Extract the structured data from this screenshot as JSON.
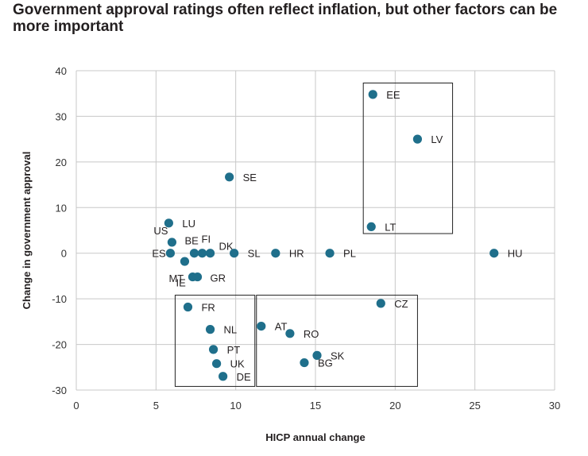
{
  "chart_data": {
    "type": "scatter",
    "title": "Government approval ratings often reflect inflation, but other factors can be more important",
    "xlabel": "HICP annual change",
    "ylabel": "Change in government approval",
    "xlim": [
      0,
      30
    ],
    "ylim": [
      -30,
      40
    ],
    "xticks": [
      0,
      5,
      10,
      15,
      20,
      25,
      30
    ],
    "yticks": [
      -30,
      -20,
      -10,
      0,
      10,
      20,
      30,
      40
    ],
    "grid": true,
    "marker_color": "#1f6f8b",
    "points": [
      {
        "label": "EE",
        "x": 18.6,
        "y": 34.8
      },
      {
        "label": "LV",
        "x": 21.4,
        "y": 25.0
      },
      {
        "label": "SE",
        "x": 9.6,
        "y": 16.7
      },
      {
        "label": "LU",
        "x": 5.8,
        "y": 6.6
      },
      {
        "label": "LT",
        "x": 18.5,
        "y": 5.8
      },
      {
        "label": "US",
        "x": 6.0,
        "y": 2.4
      },
      {
        "label": "BE",
        "x": 7.4,
        "y": 0.0
      },
      {
        "label": "FI",
        "x": 7.9,
        "y": 0.0
      },
      {
        "label": "DK",
        "x": 8.4,
        "y": 0.0
      },
      {
        "label": "ES",
        "x": 5.9,
        "y": 0.0
      },
      {
        "label": "SL",
        "x": 9.9,
        "y": 0.0
      },
      {
        "label": "HR",
        "x": 12.5,
        "y": 0.0
      },
      {
        "label": "PL",
        "x": 15.9,
        "y": 0.0
      },
      {
        "label": "HU",
        "x": 26.2,
        "y": 0.0
      },
      {
        "label": "MT",
        "x": 6.8,
        "y": -1.8
      },
      {
        "label": "IE",
        "x": 7.3,
        "y": -5.2
      },
      {
        "label": "GR",
        "x": 7.6,
        "y": -5.2
      },
      {
        "label": "FR",
        "x": 7.0,
        "y": -11.8
      },
      {
        "label": "CZ",
        "x": 19.1,
        "y": -11.0
      },
      {
        "label": "NL",
        "x": 8.4,
        "y": -16.7
      },
      {
        "label": "AT",
        "x": 11.6,
        "y": -16.0
      },
      {
        "label": "RO",
        "x": 13.4,
        "y": -17.6
      },
      {
        "label": "PT",
        "x": 8.6,
        "y": -21.1
      },
      {
        "label": "SK",
        "x": 15.1,
        "y": -22.4
      },
      {
        "label": "BG",
        "x": 14.3,
        "y": -24.0
      },
      {
        "label": "UK",
        "x": 8.8,
        "y": -24.2
      },
      {
        "label": "DE",
        "x": 9.2,
        "y": -27.0
      }
    ],
    "highlight_boxes": [
      {
        "name": "box-eastern-baltic",
        "x0": 18.0,
        "x1": 23.6,
        "y0": 4.3,
        "y1": 37.3
      },
      {
        "name": "box-lower-left",
        "x0": 6.2,
        "x1": 11.2,
        "y0": -29.2,
        "y1": -9.2
      },
      {
        "name": "box-lower-middle",
        "x0": 11.3,
        "x1": 21.4,
        "y0": -29.2,
        "y1": -9.2
      }
    ]
  }
}
